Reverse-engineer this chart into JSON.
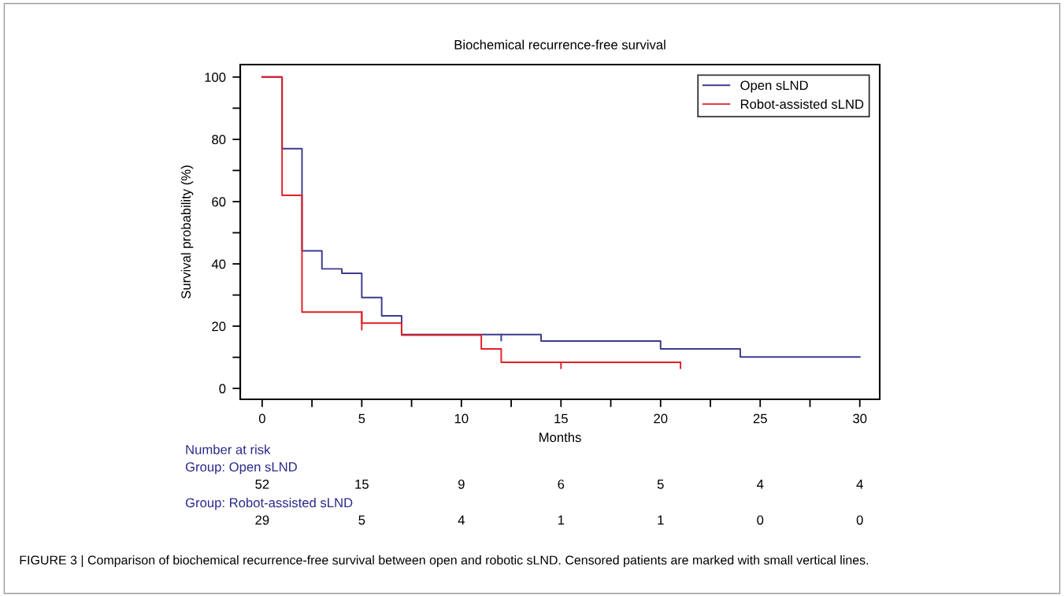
{
  "chart_data": {
    "type": "step",
    "title": "Biochemical recurrence-free survival",
    "xlabel": "Months",
    "ylabel": "Survival probability (%)",
    "series": [
      {
        "name": "Open sLND",
        "color": "#3b3b8f",
        "x": [
          0,
          1,
          2,
          3,
          4,
          5,
          6,
          7,
          14,
          20,
          24,
          30
        ],
        "values": [
          100,
          77,
          44.2,
          38.4,
          37,
          29.2,
          23.3,
          17.3,
          15.2,
          12.7,
          10.1,
          10.1
        ]
      },
      {
        "name": "Robot-assisted sLND",
        "color": "#e02028",
        "x": [
          0,
          1,
          2,
          5,
          7,
          11,
          12,
          21
        ],
        "values": [
          100,
          62,
          24.5,
          21,
          17.1,
          12.7,
          8.4,
          8.4
        ]
      },
      {
        "type": "line",
        "color": "#3b3b8f",
        "x": [
          12,
          12
        ],
        "values": [
          17.3,
          15.4
        ]
      },
      {
        "type": "line",
        "color": "#e02028",
        "x": [
          5,
          5
        ],
        "values": [
          24.6,
          18.9
        ]
      },
      {
        "type": "line",
        "color": "#e02028",
        "x": [
          15,
          15
        ],
        "values": [
          8.4,
          6.5
        ]
      },
      {
        "type": "line",
        "color": "#e02028",
        "x": [
          21,
          21
        ],
        "values": [
          8.4,
          6.5
        ]
      }
    ],
    "xlim": [
      -1.1,
      31
    ],
    "ylim": [
      -3.5,
      104
    ],
    "xticks": [
      0,
      {
        "value": 2.5,
        "label": null
      },
      5,
      {
        "value": 7.5,
        "label": null
      },
      10,
      {
        "value": 12.5,
        "label": null
      },
      15,
      {
        "value": 17.5,
        "label": null
      },
      20,
      {
        "value": 22.5,
        "label": null
      },
      25,
      {
        "value": 27.5,
        "label": null
      },
      30
    ],
    "yticks": [
      0,
      {
        "value": 10,
        "label": null
      },
      20,
      {
        "value": 30,
        "label": null
      },
      40,
      {
        "value": 50,
        "label": null
      },
      60,
      {
        "value": 70,
        "label": null
      },
      80,
      {
        "value": 90,
        "label": null
      },
      100
    ],
    "legend": "top right",
    "grid": false,
    "annotations": [
      "Number at risk",
      "Group: Open sLND",
      "52",
      "15",
      "9",
      "6",
      "5",
      "4",
      "4",
      "Group: Robot-assisted sLND",
      "29",
      "5",
      "4",
      "1",
      "1",
      "0",
      "0",
      "FIGURE 3 | Comparison of biochemical recurrence-free survival between open and robotic sLND. Censored patients are marked with small vertical lines."
    ]
  }
}
